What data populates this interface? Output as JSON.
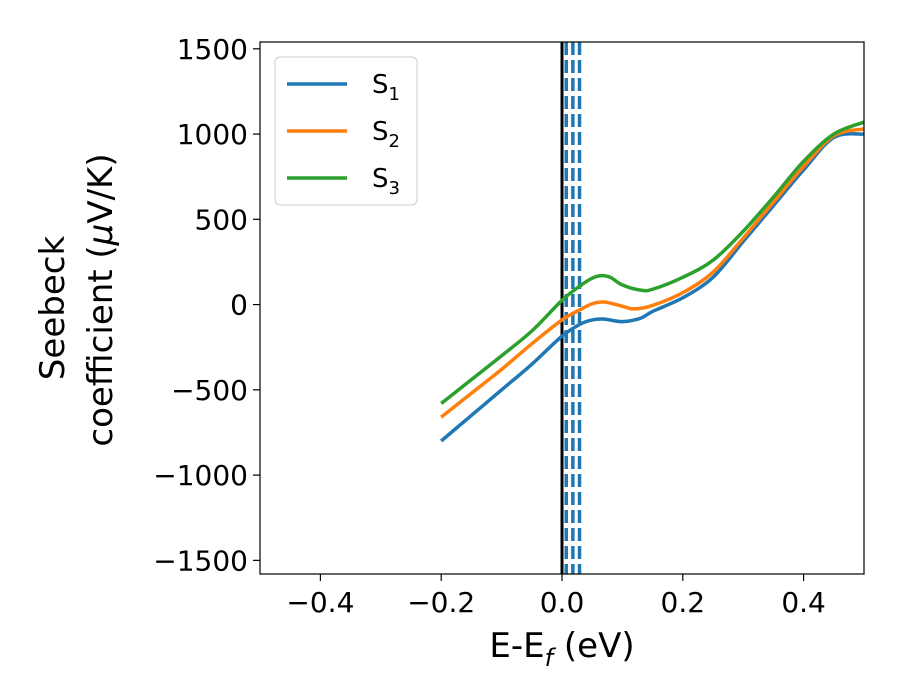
{
  "chart_data": {
    "type": "line",
    "xlabel": "E-E",
    "xlabel_sub": "f",
    "xlabel_unit": " (eV)",
    "ylabel_line1": "Seebeck",
    "ylabel_line2": "coefficient  (",
    "ylabel_mu": "μ",
    "ylabel_unit": "V/K)",
    "xlim": [
      -0.5,
      0.5
    ],
    "ylim": [
      -1580,
      1540
    ],
    "xticks": [
      -0.4,
      -0.2,
      0.0,
      0.2,
      0.4
    ],
    "xtick_labels": [
      "−0.4",
      "−0.2",
      "0.0",
      "0.2",
      "0.4"
    ],
    "yticks": [
      -1500,
      -1000,
      -500,
      0,
      500,
      1000,
      1500
    ],
    "ytick_labels": [
      "−1500",
      "−1000",
      "−500",
      "0",
      "500",
      "1000",
      "1500"
    ],
    "grid": false,
    "legend_placement": "top-left",
    "vertical_lines": [
      {
        "x": 0.0,
        "style": "solid",
        "color": "#000000"
      },
      {
        "x": 0.007,
        "style": "dashed",
        "color": "#1f77b4"
      },
      {
        "x": 0.018,
        "style": "dashed",
        "color": "#1f77b4"
      },
      {
        "x": 0.029,
        "style": "dashed",
        "color": "#1f77b4"
      }
    ],
    "series": [
      {
        "name": "S",
        "sub": "1",
        "color": "#1f77b4",
        "x": [
          -0.2,
          -0.15,
          -0.1,
          -0.05,
          0.0,
          0.03,
          0.05,
          0.07,
          0.1,
          0.13,
          0.15,
          0.2,
          0.25,
          0.3,
          0.35,
          0.4,
          0.45,
          0.5
        ],
        "y": [
          -800,
          -650,
          -500,
          -350,
          -185,
          -115,
          -90,
          -85,
          -100,
          -80,
          -40,
          40,
          160,
          370,
          580,
          790,
          980,
          1000
        ]
      },
      {
        "name": "S",
        "sub": "2",
        "color": "#ff7f0e",
        "x": [
          -0.2,
          -0.15,
          -0.1,
          -0.05,
          0.0,
          0.03,
          0.05,
          0.07,
          0.1,
          0.12,
          0.15,
          0.2,
          0.25,
          0.3,
          0.35,
          0.4,
          0.45,
          0.5
        ],
        "y": [
          -660,
          -520,
          -380,
          -230,
          -90,
          -30,
          5,
          15,
          -10,
          -25,
          -5,
          70,
          190,
          390,
          600,
          810,
          990,
          1030
        ]
      },
      {
        "name": "S",
        "sub": "3",
        "color": "#2ca02c",
        "x": [
          -0.2,
          -0.15,
          -0.1,
          -0.05,
          0.0,
          0.03,
          0.05,
          0.065,
          0.08,
          0.1,
          0.13,
          0.15,
          0.2,
          0.25,
          0.3,
          0.35,
          0.4,
          0.45,
          0.5
        ],
        "y": [
          -580,
          -440,
          -300,
          -155,
          25,
          110,
          155,
          170,
          160,
          115,
          85,
          90,
          160,
          260,
          430,
          630,
          840,
          1000,
          1070
        ]
      }
    ]
  }
}
